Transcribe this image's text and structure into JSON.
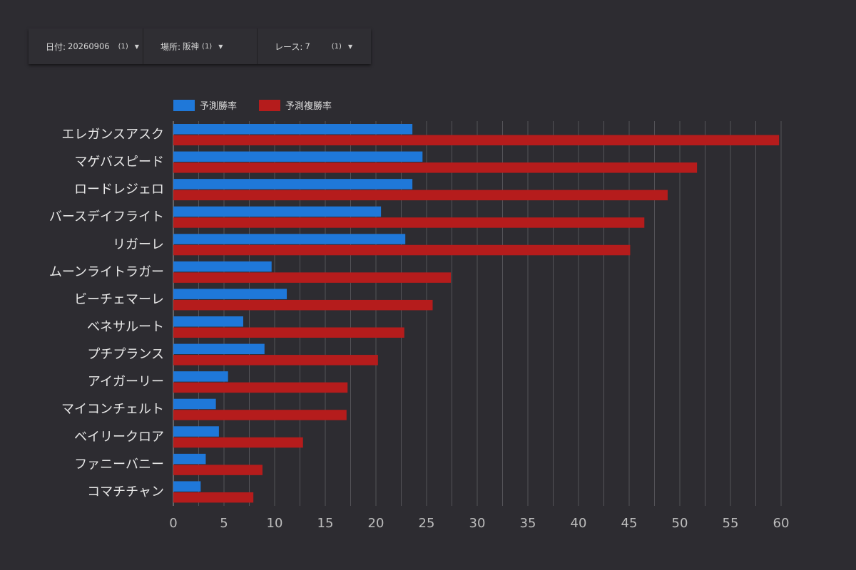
{
  "filters": [
    {
      "label": "日付:",
      "value": "20260906",
      "count": "(1)"
    },
    {
      "label": "場所:",
      "value": "阪神",
      "count": "(1)"
    },
    {
      "label": "レース:",
      "value": "7",
      "count": "(1)"
    }
  ],
  "colors": {
    "background": "#2d2c31",
    "series1": "#1f78d9",
    "series2": "#b51c1c",
    "grid": "#545358"
  },
  "chart_data": {
    "type": "bar",
    "orientation": "horizontal",
    "categories": [
      "エレガンスアスク",
      "マゲバスピード",
      "ロードレジェロ",
      "バースデイフライト",
      "リガーレ",
      "ムーンライトラガー",
      "ビーチェマーレ",
      "ベネサルート",
      "プチプランス",
      "アイガーリー",
      "マイコンチェルト",
      "ベイリークロア",
      "ファニーバニー",
      "コマチチャン"
    ],
    "series": [
      {
        "name": "予測勝率",
        "values": [
          23.6,
          24.6,
          23.6,
          20.5,
          22.9,
          9.7,
          11.2,
          6.9,
          9.0,
          5.4,
          4.2,
          4.5,
          3.2,
          2.7
        ]
      },
      {
        "name": "予測複勝率",
        "values": [
          59.8,
          51.7,
          48.8,
          46.5,
          45.1,
          27.4,
          25.6,
          22.8,
          20.2,
          17.2,
          17.1,
          12.8,
          8.8,
          7.9
        ]
      }
    ],
    "xlim": [
      0,
      60
    ],
    "xticks": [
      "0",
      "5",
      "10",
      "15",
      "20",
      "25",
      "30",
      "35",
      "40",
      "45",
      "50",
      "55",
      "60"
    ],
    "grid": "vertical",
    "legend_position": "top-left"
  }
}
